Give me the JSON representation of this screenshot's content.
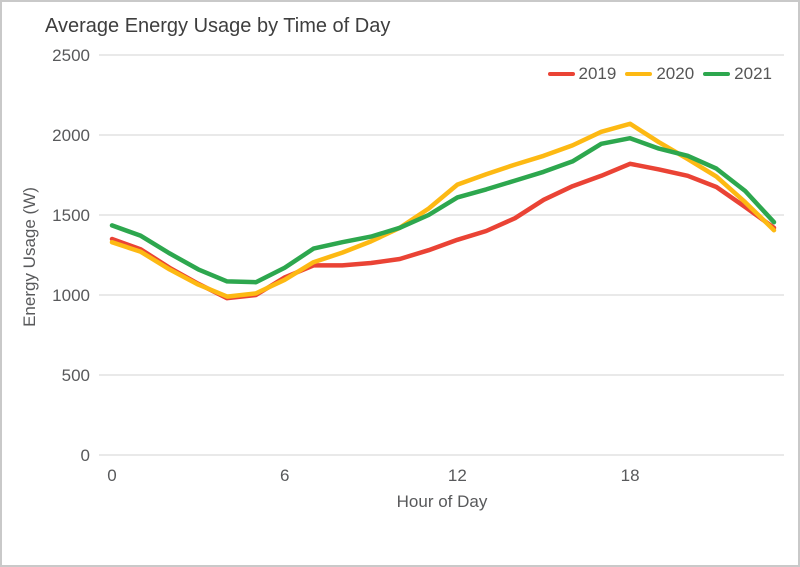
{
  "title": "Average Energy Usage by Time of Day",
  "chart_data": {
    "type": "line",
    "title": "Average Energy Usage by Time of Day",
    "xlabel": "Hour of Day",
    "ylabel": "Energy Usage (W)",
    "xlim": [
      0,
      23
    ],
    "ylim": [
      0,
      2500
    ],
    "x_ticks": [
      0,
      6,
      12,
      18
    ],
    "y_ticks": [
      0,
      500,
      1000,
      1500,
      2000,
      2500
    ],
    "grid": "horizontal",
    "legend_position": "top-right",
    "x": [
      0,
      1,
      2,
      3,
      4,
      5,
      6,
      7,
      8,
      9,
      10,
      11,
      12,
      13,
      14,
      15,
      16,
      17,
      18,
      19,
      20,
      21,
      22,
      23
    ],
    "series": [
      {
        "name": "2019",
        "color": "#ea4335",
        "values": [
          1350,
          1285,
          1170,
          1070,
          980,
          1000,
          1110,
          1185,
          1185,
          1200,
          1225,
          1280,
          1345,
          1400,
          1480,
          1595,
          1680,
          1745,
          1820,
          1785,
          1745,
          1675,
          1550,
          1420
        ]
      },
      {
        "name": "2020",
        "color": "#fdb913",
        "values": [
          1330,
          1270,
          1160,
          1065,
          990,
          1010,
          1095,
          1205,
          1265,
          1335,
          1420,
          1540,
          1690,
          1755,
          1815,
          1870,
          1935,
          2020,
          2070,
          1955,
          1850,
          1740,
          1580,
          1405
        ]
      },
      {
        "name": "2021",
        "color": "#2da74e",
        "values": [
          1435,
          1370,
          1260,
          1160,
          1085,
          1080,
          1170,
          1290,
          1330,
          1365,
          1420,
          1500,
          1610,
          1660,
          1715,
          1770,
          1835,
          1945,
          1980,
          1915,
          1870,
          1790,
          1650,
          1455
        ]
      }
    ]
  }
}
